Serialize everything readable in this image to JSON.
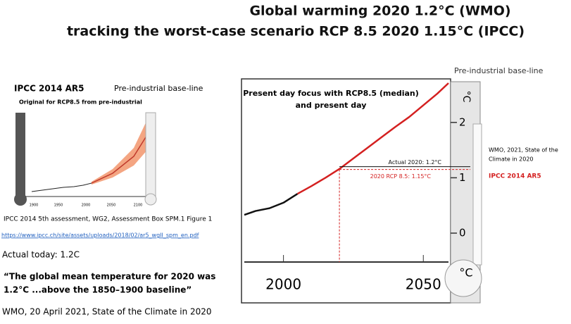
{
  "header": {
    "title_lines": [
      "Global warming 2020 1.2°C (WMO)",
      "tracking the worst-case scenario RCP 8.5  2020 1.15°C (IPCC)"
    ]
  },
  "left_panel": {
    "title": "IPCC 2014 AR5",
    "baseline_label": "Pre-industrial base-line",
    "subtitle": "Original for RCP8.5 from pre-industrial",
    "mini_chart_xlabels": [
      "1900",
      "1950",
      "2000",
      "2050",
      "2100"
    ],
    "source": "IPCC 2014 5th assessment, WG2, Assessment Box SPM.1 Figure 1",
    "url": "https://www.ipcc.ch/site/assets/uploads/2018/02/ar5_wgII_spm_en.pdf",
    "actual_today": "Actual today: 1.2C",
    "quote_lines": [
      "“The global mean temperature for 2020 was",
      "1.2°C ...above the 1850–1900 baseline”"
    ],
    "citation": "WMO, 20 April 2021, State of the Climate in 2020"
  },
  "right_labels": {
    "baseline_label": "Pre-industrial base-line",
    "wmo_lines": [
      "WMO,  2021, State of the",
      "Climate in 2020"
    ],
    "ipcc_label": "IPCC 2014 AR5"
  },
  "chart_data": {
    "type": "line",
    "title_lines": [
      "Present day focus with RCP8.5 (median)",
      "and present day"
    ],
    "x": [
      1986,
      1990,
      1995,
      2000,
      2005,
      2010,
      2015,
      2020,
      2025,
      2030,
      2035,
      2040,
      2045,
      2050,
      2055,
      2059
    ],
    "series": [
      {
        "color": "#111111",
        "values": [
          0.33,
          0.4,
          0.45,
          0.55,
          0.71,
          null,
          null,
          null,
          null,
          null,
          null,
          null,
          null,
          null,
          null,
          null
        ]
      },
      {
        "color": "#d42020",
        "values": [
          null,
          null,
          null,
          null,
          0.71,
          0.85,
          1.0,
          1.16,
          1.35,
          1.54,
          1.73,
          1.92,
          2.1,
          2.31,
          2.52,
          2.71
        ]
      }
    ],
    "xlim": [
      1986,
      2059
    ],
    "ylim": [
      -0.56,
      2.71
    ],
    "xticks": [
      2000,
      2050
    ],
    "yticks": [
      0,
      1,
      2
    ],
    "y_unit": "°C",
    "annotations": [
      {
        "text": "Actual 2020: 1.2°C",
        "x": 2020,
        "y": 1.2,
        "color": "#111111"
      },
      {
        "text": "2020 RCP 8.5: 1.15°C",
        "x": 2020,
        "y": 1.15,
        "color": "#d42020"
      }
    ]
  }
}
